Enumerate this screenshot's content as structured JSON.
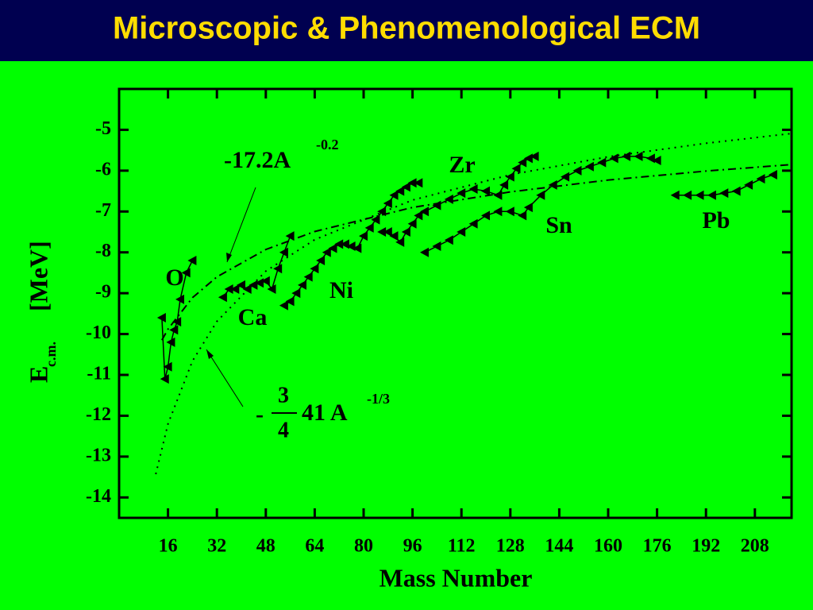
{
  "chart_data": {
    "type": "line",
    "title": "Microscopic & Phenomenological ECM",
    "x_label": "Mass Number",
    "y_label": "E",
    "y_label_sub": "c.m.",
    "y_label_unit": "[MeV]",
    "xlim": [
      0,
      220
    ],
    "ylim": [
      -14.5,
      -4
    ],
    "xticks": [
      16,
      32,
      48,
      64,
      80,
      96,
      112,
      128,
      144,
      160,
      176,
      192,
      208
    ],
    "yticks": [
      -5,
      -6,
      -7,
      -8,
      -9,
      -10,
      -11,
      -12,
      -13,
      -14
    ],
    "color": "#000000",
    "series": [
      {
        "name": "O",
        "x": [
          14,
          15,
          16,
          17,
          18,
          19,
          20,
          22,
          24
        ],
        "values": [
          -9.6,
          -11.1,
          -10.8,
          -10.2,
          -9.9,
          -9.7,
          -9.15,
          -8.5,
          -8.2
        ]
      },
      {
        "name": "Ca",
        "x": [
          34,
          36,
          38,
          40,
          42,
          44,
          46,
          48,
          50,
          52,
          54,
          56
        ],
        "values": [
          -9.1,
          -8.9,
          -8.9,
          -8.8,
          -8.9,
          -8.8,
          -8.75,
          -8.7,
          -8.9,
          -8.4,
          -8.0,
          -7.6
        ]
      },
      {
        "name": "Ni",
        "x": [
          54,
          56,
          58,
          60,
          62,
          64,
          66,
          68,
          70,
          72,
          74,
          76,
          78,
          80,
          82,
          84,
          86,
          88,
          90,
          92,
          94,
          96,
          98
        ],
        "values": [
          -9.3,
          -9.2,
          -9.0,
          -8.8,
          -8.6,
          -8.4,
          -8.2,
          -8.0,
          -7.9,
          -7.8,
          -7.8,
          -7.85,
          -7.9,
          -7.6,
          -7.4,
          -7.2,
          -7.0,
          -6.8,
          -6.6,
          -6.5,
          -6.4,
          -6.3,
          -6.3
        ]
      },
      {
        "name": "Zr",
        "x": [
          86,
          88,
          90,
          92,
          94,
          96,
          98,
          100,
          104,
          108,
          112,
          116,
          120,
          124,
          126,
          128,
          130,
          132,
          134,
          136
        ],
        "values": [
          -7.5,
          -7.5,
          -7.6,
          -7.75,
          -7.5,
          -7.3,
          -7.1,
          -7.0,
          -6.85,
          -6.7,
          -6.55,
          -6.45,
          -6.5,
          -6.6,
          -6.35,
          -6.15,
          -5.95,
          -5.8,
          -5.7,
          -5.65
        ]
      },
      {
        "name": "Sn",
        "x": [
          100,
          104,
          108,
          112,
          116,
          120,
          124,
          128,
          132,
          134,
          138,
          142,
          146,
          150,
          154,
          158,
          162,
          166,
          170,
          174,
          176
        ],
        "values": [
          -8.0,
          -7.85,
          -7.7,
          -7.5,
          -7.3,
          -7.1,
          -7.0,
          -7.0,
          -7.1,
          -6.9,
          -6.6,
          -6.35,
          -6.15,
          -6.0,
          -5.9,
          -5.8,
          -5.7,
          -5.65,
          -5.65,
          -5.7,
          -5.75
        ]
      },
      {
        "name": "Pb",
        "x": [
          182,
          186,
          190,
          194,
          198,
          202,
          206,
          210,
          214
        ],
        "values": [
          -6.6,
          -6.6,
          -6.6,
          -6.6,
          -6.55,
          -6.5,
          -6.35,
          -6.2,
          -6.1
        ]
      }
    ],
    "fits": [
      {
        "style": "dashdot",
        "label": "-17.2A",
        "exponent": "-0.2",
        "x": [
          14,
          16,
          24,
          32,
          48,
          64,
          96,
          128,
          160,
          192,
          220
        ],
        "values": [
          -10.15,
          -9.88,
          -9.11,
          -8.6,
          -7.93,
          -7.49,
          -6.9,
          -6.52,
          -6.23,
          -6.01,
          -5.85
        ]
      },
      {
        "style": "dotted",
        "sign": "-",
        "numerator": "3",
        "denominator": "4",
        "label": "41 A",
        "exponent": "-1/3",
        "x": [
          12,
          16,
          24,
          32,
          48,
          64,
          96,
          128,
          160,
          192,
          220
        ],
        "values": [
          -13.43,
          -12.2,
          -10.66,
          -9.69,
          -8.46,
          -7.69,
          -6.72,
          -6.1,
          -5.66,
          -5.33,
          -5.09
        ]
      }
    ]
  }
}
